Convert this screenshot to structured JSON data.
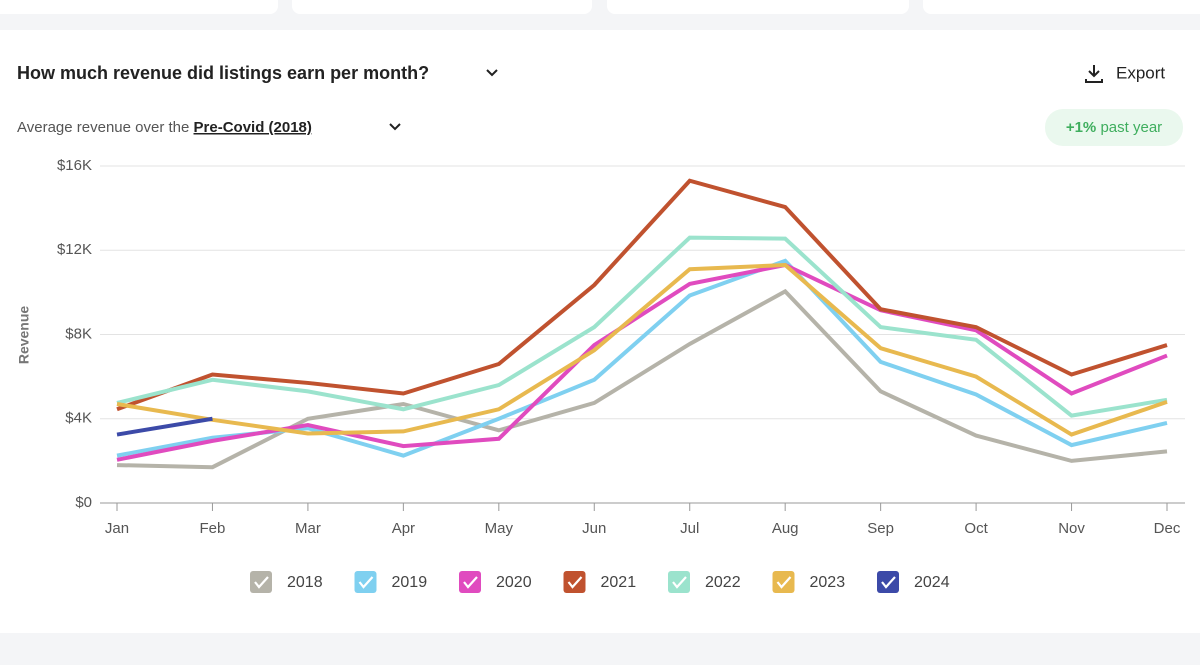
{
  "header": {
    "title": "How much revenue did listings earn per month?",
    "export": "Export"
  },
  "subtitle": {
    "prefix": "Average revenue over the",
    "link": "Pre-Covid (2018)"
  },
  "badge": {
    "value": "+1%",
    "text": "past year"
  },
  "chart_data": {
    "type": "line",
    "y_label": "Revenue",
    "categories": [
      "Jan",
      "Feb",
      "Mar",
      "Apr",
      "May",
      "Jun",
      "Jul",
      "Aug",
      "Sep",
      "Oct",
      "Nov",
      "Dec"
    ],
    "ylim": [
      0,
      16000
    ],
    "yticks": [
      {
        "value": 0,
        "label": "$0"
      },
      {
        "value": 4000,
        "label": "$4K"
      },
      {
        "value": 8000,
        "label": "$8K"
      },
      {
        "value": 12000,
        "label": "$12K"
      },
      {
        "value": 16000,
        "label": "$16K"
      }
    ],
    "grid": true,
    "legend": "bottom",
    "series": [
      {
        "name": "2018",
        "color": "#b5b3a9",
        "values": [
          1800,
          1700,
          4000,
          4700,
          3450,
          4750,
          7550,
          10050,
          5300,
          3200,
          2000,
          2450
        ]
      },
      {
        "name": "2019",
        "color": "#7fd0f0",
        "values": [
          2250,
          3100,
          3550,
          2250,
          4000,
          5850,
          9850,
          11500,
          6700,
          5150,
          2750,
          3800
        ]
      },
      {
        "name": "2020",
        "color": "#e04bbf",
        "values": [
          2050,
          2950,
          3700,
          2700,
          3050,
          7500,
          10400,
          11300,
          9150,
          8200,
          5200,
          7000
        ]
      },
      {
        "name": "2021",
        "color": "#c0522f",
        "values": [
          4450,
          6100,
          5700,
          5200,
          6600,
          10350,
          15300,
          14050,
          9200,
          8350,
          6100,
          7500
        ]
      },
      {
        "name": "2022",
        "color": "#9be3cd",
        "values": [
          4750,
          5850,
          5300,
          4450,
          5600,
          8350,
          12600,
          12550,
          8350,
          7750,
          4150,
          4900
        ]
      },
      {
        "name": "2023",
        "color": "#e8b94f",
        "values": [
          4700,
          3950,
          3300,
          3400,
          4450,
          7250,
          11100,
          11300,
          7350,
          6000,
          3250,
          4800
        ]
      },
      {
        "name": "2024",
        "color": "#3c4aa8",
        "values": [
          3250,
          4000,
          null,
          null,
          null,
          null,
          null,
          null,
          null,
          null,
          null,
          null
        ]
      }
    ]
  }
}
